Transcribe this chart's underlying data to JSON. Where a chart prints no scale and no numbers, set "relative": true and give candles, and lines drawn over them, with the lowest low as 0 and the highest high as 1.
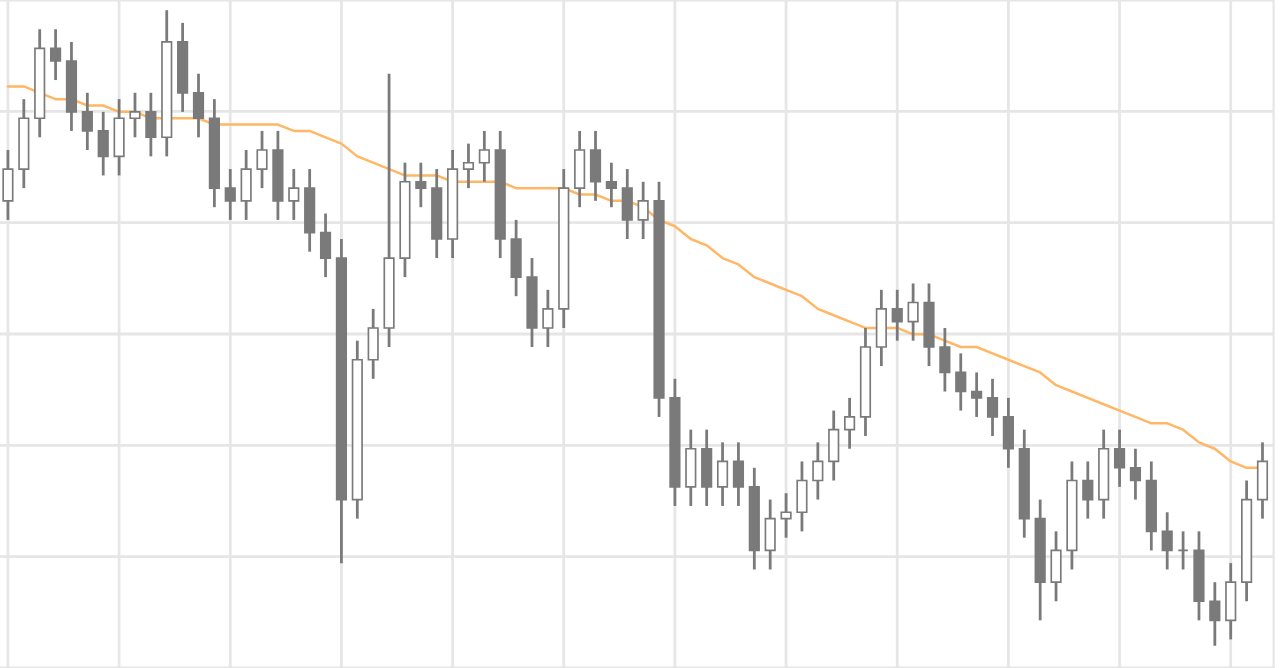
{
  "chart_data": {
    "type": "candlestick",
    "relative": true,
    "grid": true,
    "color": "#7a7a7a",
    "categories": [
      null,
      null,
      null,
      null,
      null,
      null,
      null,
      null,
      null,
      null,
      null,
      null,
      null,
      null,
      null,
      null,
      null,
      null,
      null,
      null,
      null,
      null,
      null,
      null,
      null,
      null,
      null,
      null,
      null,
      null,
      null,
      null,
      null,
      null,
      null,
      null,
      null,
      null,
      null,
      null,
      null,
      null,
      null,
      null,
      null,
      null,
      null,
      null,
      null,
      null,
      null,
      null,
      null,
      null,
      null,
      null,
      null,
      null,
      null,
      null,
      null,
      null,
      null,
      null,
      null,
      null,
      null,
      null,
      null,
      null,
      null,
      null,
      null,
      null,
      null,
      null,
      null,
      null,
      null,
      null
    ],
    "ohlc": [
      [
        0.7,
        0.78,
        0.67,
        0.75
      ],
      [
        0.75,
        0.86,
        0.72,
        0.83
      ],
      [
        0.83,
        0.97,
        0.8,
        0.94
      ],
      [
        0.94,
        0.97,
        0.89,
        0.92
      ],
      [
        0.92,
        0.95,
        0.81,
        0.84
      ],
      [
        0.84,
        0.87,
        0.78,
        0.81
      ],
      [
        0.81,
        0.84,
        0.74,
        0.77
      ],
      [
        0.77,
        0.86,
        0.74,
        0.83
      ],
      [
        0.83,
        0.87,
        0.8,
        0.84
      ],
      [
        0.84,
        0.87,
        0.77,
        0.8
      ],
      [
        0.8,
        1.0,
        0.77,
        0.95
      ],
      [
        0.95,
        0.98,
        0.84,
        0.87
      ],
      [
        0.87,
        0.9,
        0.8,
        0.83
      ],
      [
        0.83,
        0.86,
        0.69,
        0.72
      ],
      [
        0.72,
        0.75,
        0.67,
        0.7
      ],
      [
        0.7,
        0.78,
        0.67,
        0.75
      ],
      [
        0.75,
        0.81,
        0.72,
        0.78
      ],
      [
        0.78,
        0.81,
        0.67,
        0.7
      ],
      [
        0.7,
        0.75,
        0.67,
        0.72
      ],
      [
        0.72,
        0.75,
        0.62,
        0.65
      ],
      [
        0.65,
        0.68,
        0.58,
        0.61
      ],
      [
        0.61,
        0.64,
        0.13,
        0.23
      ],
      [
        0.23,
        0.48,
        0.2,
        0.45
      ],
      [
        0.45,
        0.53,
        0.42,
        0.5
      ],
      [
        0.5,
        0.9,
        0.47,
        0.61
      ],
      [
        0.61,
        0.76,
        0.58,
        0.73
      ],
      [
        0.73,
        0.76,
        0.69,
        0.72
      ],
      [
        0.72,
        0.75,
        0.61,
        0.64
      ],
      [
        0.64,
        0.78,
        0.61,
        0.75
      ],
      [
        0.75,
        0.79,
        0.72,
        0.76
      ],
      [
        0.76,
        0.81,
        0.73,
        0.78
      ],
      [
        0.78,
        0.81,
        0.61,
        0.64
      ],
      [
        0.64,
        0.67,
        0.55,
        0.58
      ],
      [
        0.58,
        0.61,
        0.47,
        0.5
      ],
      [
        0.5,
        0.56,
        0.47,
        0.53
      ],
      [
        0.53,
        0.75,
        0.5,
        0.72
      ],
      [
        0.72,
        0.81,
        0.69,
        0.78
      ],
      [
        0.78,
        0.81,
        0.7,
        0.73
      ],
      [
        0.73,
        0.76,
        0.69,
        0.72
      ],
      [
        0.72,
        0.75,
        0.64,
        0.67
      ],
      [
        0.67,
        0.73,
        0.64,
        0.7
      ],
      [
        0.7,
        0.73,
        0.36,
        0.39
      ],
      [
        0.39,
        0.42,
        0.22,
        0.25
      ],
      [
        0.25,
        0.34,
        0.22,
        0.31
      ],
      [
        0.31,
        0.34,
        0.22,
        0.25
      ],
      [
        0.25,
        0.32,
        0.22,
        0.29
      ],
      [
        0.29,
        0.32,
        0.22,
        0.25
      ],
      [
        0.25,
        0.28,
        0.12,
        0.15
      ],
      [
        0.15,
        0.23,
        0.12,
        0.2
      ],
      [
        0.2,
        0.24,
        0.17,
        0.21
      ],
      [
        0.21,
        0.29,
        0.18,
        0.26
      ],
      [
        0.26,
        0.32,
        0.23,
        0.29
      ],
      [
        0.29,
        0.37,
        0.26,
        0.34
      ],
      [
        0.34,
        0.39,
        0.31,
        0.36
      ],
      [
        0.36,
        0.5,
        0.33,
        0.47
      ],
      [
        0.47,
        0.56,
        0.44,
        0.53
      ],
      [
        0.53,
        0.56,
        0.48,
        0.51
      ],
      [
        0.51,
        0.57,
        0.48,
        0.54
      ],
      [
        0.54,
        0.57,
        0.44,
        0.47
      ],
      [
        0.47,
        0.5,
        0.4,
        0.43
      ],
      [
        0.43,
        0.46,
        0.37,
        0.4
      ],
      [
        0.4,
        0.43,
        0.36,
        0.39
      ],
      [
        0.39,
        0.42,
        0.33,
        0.36
      ],
      [
        0.36,
        0.39,
        0.28,
        0.31
      ],
      [
        0.31,
        0.34,
        0.17,
        0.2
      ],
      [
        0.2,
        0.23,
        0.04,
        0.1
      ],
      [
        0.1,
        0.18,
        0.07,
        0.15
      ],
      [
        0.15,
        0.29,
        0.12,
        0.26
      ],
      [
        0.26,
        0.29,
        0.2,
        0.23
      ],
      [
        0.23,
        0.34,
        0.2,
        0.31
      ],
      [
        0.31,
        0.34,
        0.25,
        0.28
      ],
      [
        0.28,
        0.31,
        0.23,
        0.26
      ],
      [
        0.26,
        0.29,
        0.15,
        0.18
      ],
      [
        0.18,
        0.21,
        0.12,
        0.15
      ],
      [
        0.15,
        0.18,
        0.12,
        0.15
      ],
      [
        0.15,
        0.18,
        0.04,
        0.07
      ],
      [
        0.07,
        0.1,
        0.0,
        0.04
      ],
      [
        0.04,
        0.13,
        0.01,
        0.1
      ],
      [
        0.1,
        0.26,
        0.07,
        0.23
      ],
      [
        0.23,
        0.32,
        0.2,
        0.29
      ]
    ],
    "series": [
      {
        "type": "line",
        "color": "#ffb766",
        "values": [
          0.88,
          0.88,
          0.87,
          0.86,
          0.86,
          0.85,
          0.85,
          0.84,
          0.84,
          0.83,
          0.83,
          0.83,
          0.83,
          0.82,
          0.82,
          0.82,
          0.82,
          0.82,
          0.81,
          0.81,
          0.8,
          0.79,
          0.77,
          0.76,
          0.75,
          0.74,
          0.74,
          0.74,
          0.73,
          0.73,
          0.73,
          0.73,
          0.72,
          0.72,
          0.72,
          0.72,
          0.71,
          0.71,
          0.7,
          0.7,
          0.69,
          0.67,
          0.66,
          0.64,
          0.63,
          0.61,
          0.6,
          0.58,
          0.57,
          0.56,
          0.55,
          0.53,
          0.52,
          0.51,
          0.5,
          0.5,
          0.5,
          0.49,
          0.49,
          0.48,
          0.47,
          0.47,
          0.46,
          0.45,
          0.44,
          0.43,
          0.41,
          0.4,
          0.39,
          0.38,
          0.37,
          0.36,
          0.35,
          0.35,
          0.34,
          0.32,
          0.31,
          0.29,
          0.28,
          0.28
        ]
      }
    ]
  }
}
